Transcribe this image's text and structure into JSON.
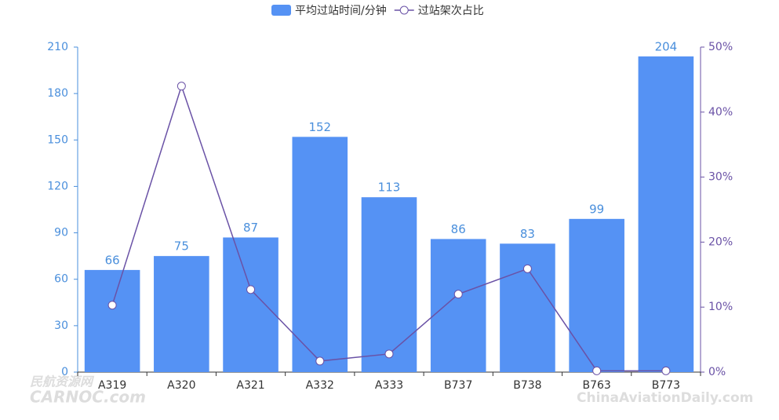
{
  "chart_data": {
    "type": "bar",
    "categories": [
      "A319",
      "A320",
      "A321",
      "A332",
      "A333",
      "B737",
      "B738",
      "B763",
      "B773"
    ],
    "series": [
      {
        "name": "平均过站时间/分钟",
        "type": "bar",
        "color": "#5592f4",
        "values": [
          66,
          75,
          87,
          152,
          113,
          86,
          83,
          99,
          204
        ]
      },
      {
        "name": "过站架次占比",
        "type": "line",
        "axis": "y2",
        "color": "#6a52a6",
        "values": [
          10.3,
          44.0,
          12.7,
          1.7,
          2.8,
          12.0,
          15.9,
          0.2,
          0.2
        ]
      }
    ],
    "ylim": [
      0,
      210
    ],
    "yticks": [
      0,
      30,
      60,
      90,
      120,
      150,
      180,
      210
    ],
    "y2lim": [
      0,
      50
    ],
    "y2ticks": [
      {
        "value": 0,
        "label": "0%"
      },
      {
        "value": 10,
        "label": "10%"
      },
      {
        "value": 20,
        "label": "20%"
      },
      {
        "value": 30,
        "label": "30%"
      },
      {
        "value": 40,
        "label": "40%"
      },
      {
        "value": 50,
        "label": "50%"
      }
    ],
    "legend": "top",
    "watermarks": [
      "民航资源网",
      "CARNOC.com",
      "ChinaAviationDaily.com"
    ]
  }
}
